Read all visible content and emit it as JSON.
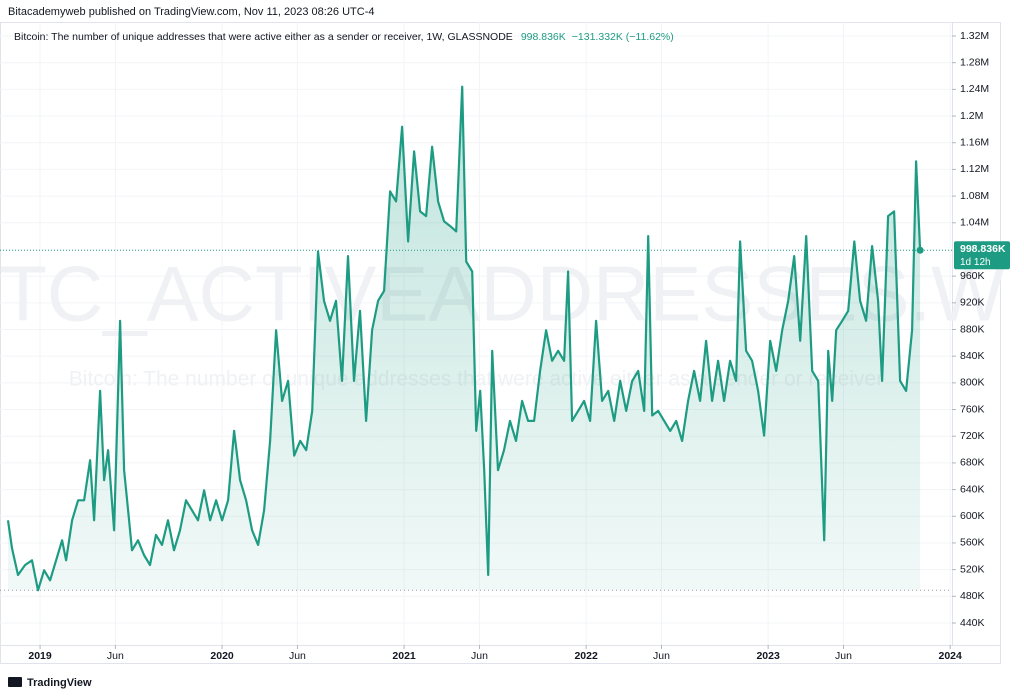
{
  "header": "Bitacademyweb published on TradingView.com, Nov 11, 2023 08:26 UTC-4",
  "footer": "TradingView",
  "chart_data": {
    "type": "area",
    "watermark": "BTC_ACTIVEADDRESSES.W",
    "watermark_subtitle": "Bitcoin: The number of unique addresses that were active either as a sender or receiver",
    "last_value_label": "998.836K",
    "change_label": "−131.332K (−11.62%)",
    "countdown": "1d 12h",
    "grid": true,
    "series": [
      {
        "name": "Bitcoin: The number of unique addresses that were active either as a sender or receiver, 1W, GLASSNODE",
        "color": "#1e9c83",
        "values": [
          594000,
          552000,
          512000,
          527000,
          534000,
          489000,
          519000,
          504000,
          534000,
          564000,
          534000,
          594000,
          624000,
          624000,
          684000,
          594000,
          788000,
          654000,
          699000,
          579000,
          893000,
          669000,
          609000,
          549000,
          564000,
          542000,
          527000,
          572000,
          557000,
          594000,
          549000,
          579000,
          624000,
          609000,
          594000,
          639000,
          594000,
          624000,
          594000,
          624000,
          728000,
          654000,
          624000,
          579000,
          557000,
          609000,
          713000,
          879000,
          773000,
          803000,
          691000,
          713000,
          699000,
          758000,
          997000,
          923000,
          893000,
          923000,
          803000,
          990000,
          803000,
          908000,
          743000,
          879000,
          923000,
          938000,
          1087000,
          1072000,
          1184000,
          1012000,
          1147000,
          1057000,
          1050000,
          1154000,
          1072000,
          1042000,
          1035000,
          1027000,
          1244000,
          982000,
          967000,
          728000,
          788000,
          669000,
          512000,
          848000,
          669000,
          699000,
          743000,
          713000,
          773000,
          743000,
          743000,
          818000,
          879000,
          833000,
          848000,
          833000,
          967000,
          743000,
          758000,
          773000,
          743000,
          893000,
          773000,
          788000,
          743000,
          803000,
          758000,
          803000,
          818000,
          758000,
          1020000,
          751000,
          758000,
          743000,
          728000,
          743000,
          713000,
          773000,
          818000,
          773000,
          863000,
          773000,
          833000,
          773000,
          833000,
          803000,
          1012000,
          848000,
          833000,
          788000,
          721000,
          863000,
          818000,
          879000,
          923000,
          990000,
          863000,
          1020000,
          818000,
          803000,
          564000,
          848000,
          773000,
          879000,
          893000,
          908000,
          1012000,
          923000,
          893000,
          1005000,
          923000,
          803000,
          1050000,
          1057000,
          803000,
          788000,
          879000,
          1132000,
          998836
        ]
      }
    ],
    "x": [
      2018.824,
      2018.846,
      2018.879,
      2018.918,
      2018.956,
      2018.989,
      2019.022,
      2019.055,
      2019.088,
      2019.121,
      2019.143,
      2019.176,
      2019.209,
      2019.242,
      2019.275,
      2019.297,
      2019.33,
      2019.352,
      2019.374,
      2019.407,
      2019.44,
      2019.462,
      2019.484,
      2019.505,
      2019.538,
      2019.571,
      2019.604,
      2019.637,
      2019.67,
      2019.703,
      2019.736,
      2019.769,
      2019.802,
      2019.835,
      2019.868,
      2019.901,
      2019.934,
      2019.967,
      2020.0,
      2020.033,
      2020.066,
      2020.099,
      2020.132,
      2020.165,
      2020.198,
      2020.231,
      2020.264,
      2020.297,
      2020.33,
      2020.363,
      2020.396,
      2020.429,
      2020.462,
      2020.495,
      2020.527,
      2020.56,
      2020.593,
      2020.626,
      2020.659,
      2020.692,
      2020.725,
      2020.758,
      2020.791,
      2020.824,
      2020.857,
      2020.89,
      2020.923,
      2020.956,
      2020.989,
      2021.022,
      2021.055,
      2021.088,
      2021.121,
      2021.154,
      2021.187,
      2021.22,
      2021.253,
      2021.286,
      2021.319,
      2021.341,
      2021.374,
      2021.396,
      2021.418,
      2021.44,
      2021.462,
      2021.484,
      2021.516,
      2021.549,
      2021.582,
      2021.615,
      2021.648,
      2021.681,
      2021.714,
      2021.747,
      2021.78,
      2021.813,
      2021.846,
      2021.879,
      2021.901,
      2021.923,
      2021.956,
      2021.989,
      2022.022,
      2022.055,
      2022.088,
      2022.121,
      2022.154,
      2022.187,
      2022.22,
      2022.253,
      2022.286,
      2022.319,
      2022.341,
      2022.363,
      2022.396,
      2022.429,
      2022.462,
      2022.495,
      2022.527,
      2022.56,
      2022.593,
      2022.626,
      2022.659,
      2022.692,
      2022.725,
      2022.758,
      2022.791,
      2022.824,
      2022.846,
      2022.879,
      2022.912,
      2022.945,
      2022.978,
      2023.011,
      2023.044,
      2023.077,
      2023.11,
      2023.143,
      2023.176,
      2023.209,
      2023.242,
      2023.275,
      2023.308,
      2023.33,
      2023.352,
      2023.374,
      2023.407,
      2023.44,
      2023.473,
      2023.505,
      2023.538,
      2023.571,
      2023.604,
      2023.626,
      2023.659,
      2023.692,
      2023.725,
      2023.758,
      2023.791,
      2023.813,
      2023.835
    ],
    "xlim": [
      2018.78,
      2024.01
    ],
    "xticks": [
      {
        "value": 2019,
        "label": "2019"
      },
      {
        "value": 2019.414,
        "label": "Jun"
      },
      {
        "value": 2020,
        "label": "2020"
      },
      {
        "value": 2020.414,
        "label": "Jun"
      },
      {
        "value": 2021,
        "label": "2021"
      },
      {
        "value": 2021.414,
        "label": "Jun"
      },
      {
        "value": 2022,
        "label": "2022"
      },
      {
        "value": 2022.414,
        "label": "Jun"
      },
      {
        "value": 2023,
        "label": "2023"
      },
      {
        "value": 2023.414,
        "label": "Jun"
      },
      {
        "value": 2024,
        "label": "2024"
      }
    ],
    "ylim": [
      407000,
      1341000
    ],
    "yticks": [
      {
        "value": 440000,
        "label": "440K"
      },
      {
        "value": 480000,
        "label": "480K"
      },
      {
        "value": 520000,
        "label": "520K"
      },
      {
        "value": 560000,
        "label": "560K"
      },
      {
        "value": 600000,
        "label": "600K"
      },
      {
        "value": 640000,
        "label": "640K"
      },
      {
        "value": 680000,
        "label": "680K"
      },
      {
        "value": 720000,
        "label": "720K"
      },
      {
        "value": 760000,
        "label": "760K"
      },
      {
        "value": 800000,
        "label": "800K"
      },
      {
        "value": 840000,
        "label": "840K"
      },
      {
        "value": 880000,
        "label": "880K"
      },
      {
        "value": 920000,
        "label": "920K"
      },
      {
        "value": 960000,
        "label": "960K"
      },
      {
        "value": 1040000,
        "label": "1.04M"
      },
      {
        "value": 1080000,
        "label": "1.08M"
      },
      {
        "value": 1120000,
        "label": "1.12M"
      },
      {
        "value": 1160000,
        "label": "1.16M"
      },
      {
        "value": 1200000,
        "label": "1.2M"
      },
      {
        "value": 1240000,
        "label": "1.24M"
      },
      {
        "value": 1280000,
        "label": "1.28M"
      },
      {
        "value": 1320000,
        "label": "1.32M"
      }
    ]
  }
}
